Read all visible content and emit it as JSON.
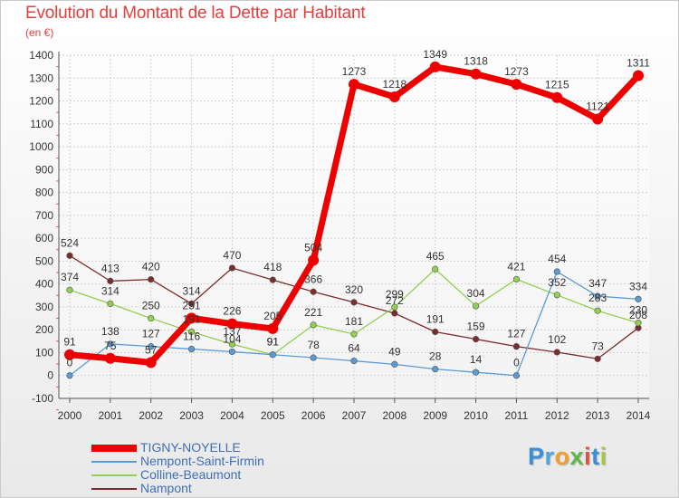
{
  "header": {
    "title": "Evolution du Montant de la Dette par Habitant",
    "unit": "(en €)"
  },
  "logo": {
    "text": "Proxiti"
  },
  "chart_data": {
    "type": "line",
    "title": "Evolution du Montant de la Dette par Habitant",
    "ylabel": "(en €)",
    "xlabel": "",
    "x": [
      "2000",
      "2001",
      "2002",
      "2003",
      "2004",
      "2005",
      "2006",
      "2007",
      "2008",
      "2009",
      "2010",
      "2011",
      "2012",
      "2013",
      "2014"
    ],
    "ylim": [
      -100,
      1400
    ],
    "yticks": [
      "-100",
      "0",
      "100",
      "200",
      "300",
      "400",
      "500",
      "600",
      "700",
      "800",
      "900",
      "1000",
      "1100",
      "1200",
      "1300",
      "1400"
    ],
    "grid": true,
    "legend_position": "bottom-left",
    "series": [
      {
        "name": "TIGNY-NOYELLE",
        "color": "#ee0000",
        "values": [
          91,
          75,
          57,
          251,
          226,
          205,
          504,
          1273,
          1218,
          1349,
          1318,
          1273,
          1215,
          1121,
          1311
        ],
        "labels": [
          "91",
          "75",
          "57",
          "251",
          "226",
          "205",
          "504",
          "1273",
          "1218",
          "1349",
          "1318",
          "1273",
          "1215",
          "1121",
          "1311"
        ]
      },
      {
        "name": "Nempont-Saint-Firmin",
        "color": "#5b9bd5",
        "values": [
          0,
          138,
          127,
          116,
          104,
          91,
          78,
          64,
          49,
          28,
          14,
          0,
          454,
          347,
          334
        ],
        "labels": [
          "0",
          "138",
          "127",
          "116",
          "104",
          "91",
          "78",
          "64",
          "49",
          "28",
          "14",
          "0",
          "454",
          "347",
          "334"
        ]
      },
      {
        "name": "Colline-Beaumont",
        "color": "#92d050",
        "values": [
          374,
          314,
          250,
          191,
          137,
          91,
          221,
          181,
          299,
          465,
          304,
          421,
          352,
          283,
          230
        ],
        "labels": [
          "374",
          "314",
          "250",
          "191",
          "137",
          "91",
          "221",
          "181",
          "299",
          "465",
          "304",
          "421",
          "352",
          "283",
          "230"
        ]
      },
      {
        "name": "Nampont",
        "color": "#7b2d2d",
        "values": [
          524,
          413,
          420,
          314,
          470,
          418,
          366,
          320,
          272,
          191,
          159,
          127,
          102,
          73,
          208
        ],
        "labels": [
          "524",
          "413",
          "420",
          "314",
          "470",
          "418",
          "366",
          "320",
          "272",
          "191",
          "159",
          "127",
          "102",
          "73",
          "208"
        ]
      }
    ]
  }
}
